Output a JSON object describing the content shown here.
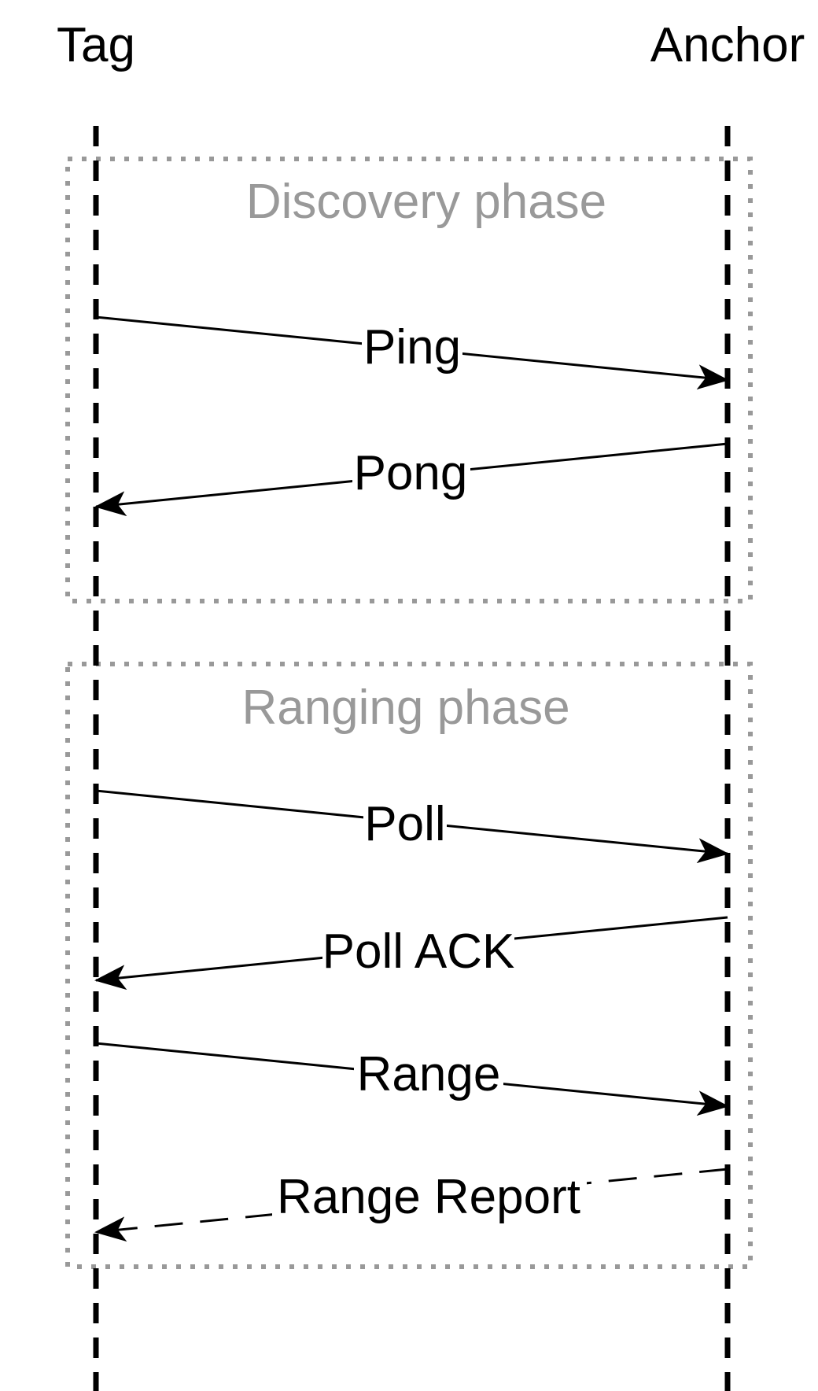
{
  "actors": {
    "tag": "Tag",
    "anchor": "Anchor"
  },
  "phases": {
    "discovery": {
      "title": "Discovery phase"
    },
    "ranging": {
      "title": "Ranging phase"
    }
  },
  "messages": [
    {
      "id": "ping",
      "label": "Ping",
      "from": "tag",
      "to": "anchor",
      "style": "solid"
    },
    {
      "id": "pong",
      "label": "Pong",
      "from": "anchor",
      "to": "tag",
      "style": "solid"
    },
    {
      "id": "poll",
      "label": "Poll",
      "from": "tag",
      "to": "anchor",
      "style": "solid"
    },
    {
      "id": "poll-ack",
      "label": "Poll ACK",
      "from": "anchor",
      "to": "tag",
      "style": "solid"
    },
    {
      "id": "range",
      "label": "Range",
      "from": "tag",
      "to": "anchor",
      "style": "solid"
    },
    {
      "id": "range-report",
      "label": "Range Report",
      "from": "anchor",
      "to": "tag",
      "style": "dashed"
    }
  ],
  "colors": {
    "lifeline": "#000000",
    "phase_border": "#999999",
    "phase_text": "#999999",
    "message": "#000000"
  }
}
